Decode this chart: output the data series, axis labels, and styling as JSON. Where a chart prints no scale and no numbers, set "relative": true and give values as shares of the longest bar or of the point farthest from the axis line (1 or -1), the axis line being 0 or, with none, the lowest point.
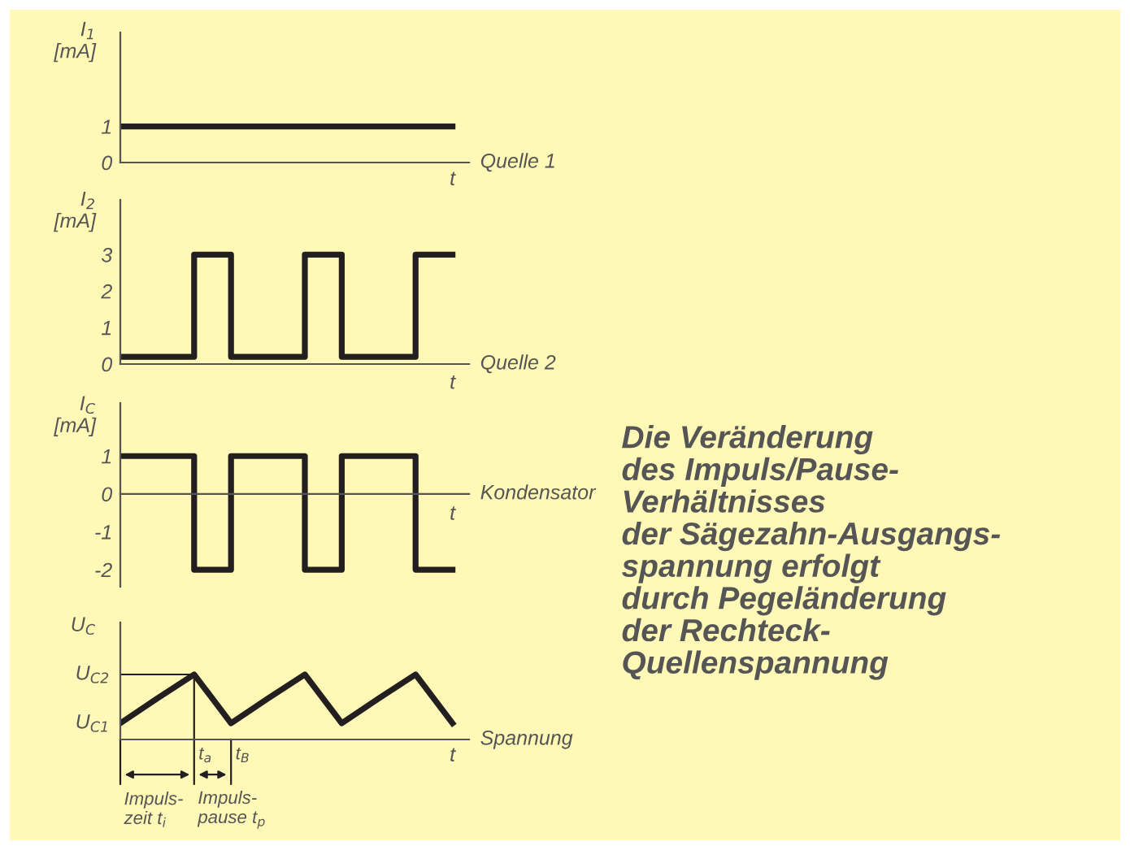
{
  "chart_data": [
    {
      "type": "step",
      "ylabel": "I$_{1}$\n[mA]",
      "xlabel": "t",
      "categories": [
        null,
        null,
        null,
        null,
        null,
        null,
        null,
        null,
        null,
        null
      ],
      "series": [
        {
          "name": "Quelle 1",
          "color": "#231f20",
          "values": [
            1,
            1,
            1,
            1,
            1,
            1,
            1,
            1,
            1,
            1
          ]
        }
      ],
      "ylim": [
        0,
        3.6
      ],
      "yticks": [
        0,
        1
      ],
      "tick_labels": "y"
    },
    {
      "type": "step",
      "ylabel": "I$_{2}$\n[mA]",
      "xlabel": "t",
      "categories": [
        null,
        null,
        null,
        null,
        null,
        null,
        null,
        null,
        null,
        null
      ],
      "series": [
        {
          "name": "Quelle 2",
          "color": "#231f20",
          "values": [
            0.2,
            0.2,
            3,
            0.2,
            0.2,
            3,
            0.2,
            0.2,
            3,
            3
          ]
        }
      ],
      "ylim": [
        0,
        4.5
      ],
      "yticks": [
        0,
        1,
        2,
        3
      ],
      "tick_labels": "y"
    },
    {
      "type": "step",
      "ylabel": "I$_{C}$\n[mA]",
      "xlabel": "t",
      "categories": [
        null,
        null,
        null,
        null,
        null,
        null,
        null,
        null,
        null,
        null
      ],
      "series": [
        {
          "name": "Kondensator",
          "color": "#231f20",
          "values": [
            1,
            1,
            -2,
            1,
            1,
            -2,
            1,
            1,
            -2,
            -2
          ]
        }
      ],
      "ylim": [
        -2.45,
        2.4
      ],
      "yticks": [
        -2,
        -1,
        0,
        1
      ],
      "tick_labels": "y"
    },
    {
      "type": "line",
      "relative": true,
      "ylabel": "U$_{C}$",
      "xlabel": "t",
      "categories": [
        null,
        null,
        null,
        null,
        null,
        null,
        null,
        null,
        null,
        null
      ],
      "series": [
        {
          "name": "Spannung",
          "color": "#231f20",
          "values": [
            0.25,
            0.63,
            1,
            0.25,
            0.63,
            1,
            0.25,
            0.63,
            1,
            0.25
          ]
        }
      ],
      "ref_lines": [
        {
          "axis": "y",
          "value": 1,
          "label": "U$_{C2}$"
        }
      ],
      "annotations": [
        "t$_{a}$",
        "t$_{B}$",
        "Impuls-\nzeit t$_{i}$",
        "Impuls-\npause t$_{p}$",
        "U$_{C1}$"
      ],
      "tick_labels": false
    },
    {
      "type": "other",
      "annotations": [
        "Die Veränderung\ndes Impuls/Pause-\nVerhältnisses\nder Sägezahn-Ausgangs-\nspannung erfolgt\ndurch Pegeländerung\nder Rechteck-\nQuellenspannung"
      ]
    }
  ]
}
